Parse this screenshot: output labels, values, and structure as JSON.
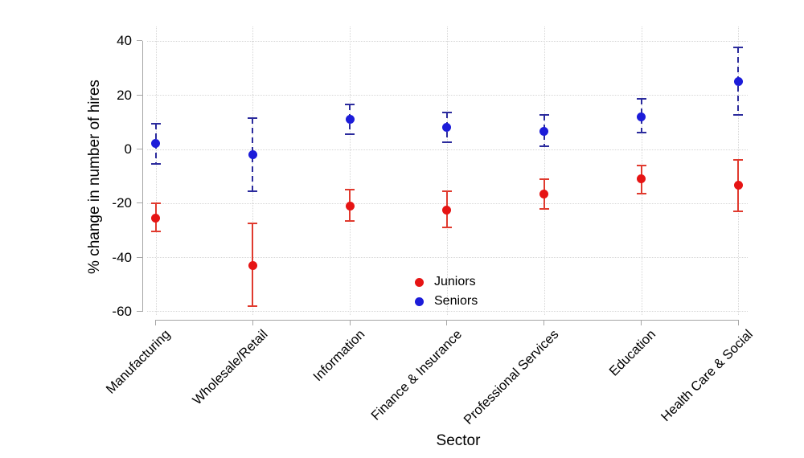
{
  "chart_data": {
    "type": "scatter",
    "subtype": "point-estimates-with-confidence-intervals",
    "title": "",
    "xlabel": "Sector",
    "ylabel": "% change in number of hires",
    "categories": [
      "Manufacturing",
      "Wholesale/Retail",
      "Information",
      "Finance & Insurance",
      "Professional Services",
      "Education",
      "Health Care & Social"
    ],
    "yticks": [
      40,
      20,
      0,
      -20,
      -40,
      -60
    ],
    "ytick_labels": [
      "40",
      "20",
      "0",
      "-20",
      "-40",
      "-60"
    ],
    "ylim": [
      -63,
      45
    ],
    "grid": "both-dotted",
    "legend_position": "inside-bottom-center",
    "series": [
      {
        "name": "Juniors",
        "marker_color": "#e61414",
        "line_color": "#e03a2e",
        "line_style": "solid",
        "values": [
          -25.5,
          -43,
          -21,
          -22.5,
          -16.5,
          -11,
          -13.5
        ],
        "ci_low": [
          -30.5,
          -58,
          -26.5,
          -29,
          -22,
          -16.5,
          -23
        ],
        "ci_high": [
          -20,
          -27.5,
          -15,
          -15.5,
          -11,
          -6,
          -4
        ]
      },
      {
        "name": "Seniors",
        "marker_color": "#1c1cd9",
        "line_color": "#2b2b9d",
        "line_style": "dashed",
        "values": [
          2,
          -2,
          11,
          8,
          6.5,
          12,
          25
        ],
        "ci_low": [
          -5.5,
          -15.5,
          5.5,
          2.5,
          1,
          6,
          12.5
        ],
        "ci_high": [
          9.5,
          11.5,
          16.5,
          13.5,
          12.5,
          18.5,
          37.5
        ]
      }
    ],
    "colors": {
      "grid": "#d6d6d6",
      "axis": "#a6a6a6",
      "text": "#000000",
      "background": "#ffffff"
    }
  }
}
